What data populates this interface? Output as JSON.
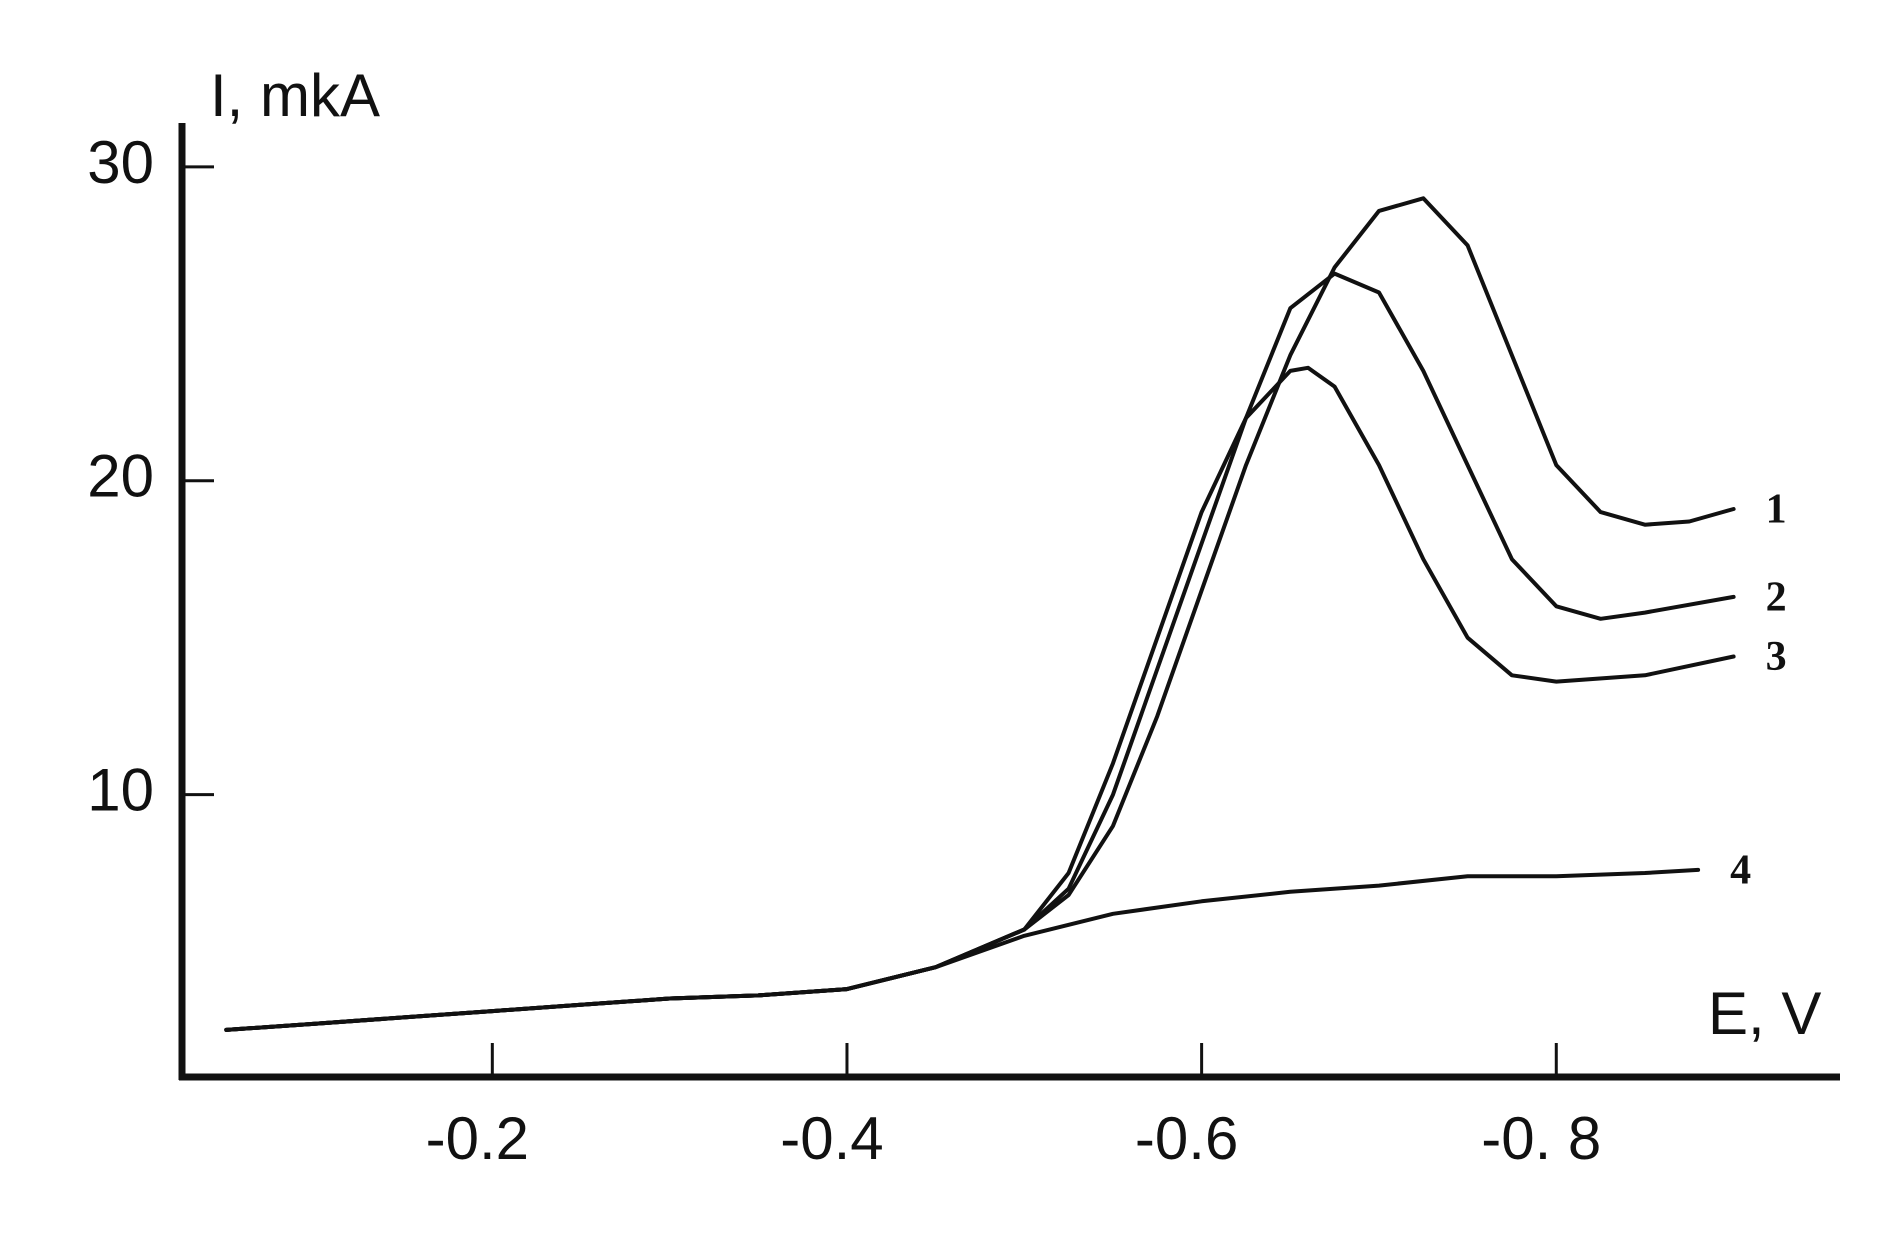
{
  "chart_data": {
    "type": "line",
    "y_label": "I, mkA",
    "x_label": "E, V",
    "xlim": [
      -0.025,
      -0.96
    ],
    "ylim": [
      1,
      31.4
    ],
    "xticks": [
      -0.2,
      -0.4,
      -0.6,
      {
        "value": -0.8,
        "label": "-0. 8"
      }
    ],
    "yticks": [
      10,
      20,
      30
    ],
    "series": [
      {
        "name": "1",
        "color": "#111111",
        "x": [
          -0.05,
          -0.1,
          -0.15,
          -0.2,
          -0.25,
          -0.3,
          -0.35,
          -0.4,
          -0.45,
          -0.5,
          -0.525,
          -0.55,
          -0.575,
          -0.6,
          -0.625,
          -0.65,
          -0.675,
          -0.7,
          -0.725,
          -0.75,
          -0.775,
          -0.8,
          -0.825,
          -0.85,
          -0.875,
          -0.9
        ],
        "values": [
          2.5,
          2.7,
          2.9,
          3.1,
          3.3,
          3.5,
          3.6,
          3.8,
          4.5,
          5.7,
          6.8,
          9,
          12.5,
          16.5,
          20.5,
          24,
          26.8,
          28.6,
          29,
          27.5,
          24,
          20.5,
          19,
          18.6,
          18.7,
          19.1
        ]
      },
      {
        "name": "2",
        "color": "#111111",
        "x": [
          -0.05,
          -0.1,
          -0.15,
          -0.2,
          -0.25,
          -0.3,
          -0.35,
          -0.4,
          -0.45,
          -0.5,
          -0.525,
          -0.55,
          -0.575,
          -0.6,
          -0.625,
          -0.65,
          -0.675,
          -0.7,
          -0.725,
          -0.75,
          -0.775,
          -0.8,
          -0.825,
          -0.85,
          -0.9
        ],
        "values": [
          2.5,
          2.7,
          2.9,
          3.1,
          3.3,
          3.5,
          3.6,
          3.8,
          4.5,
          5.7,
          7,
          10,
          14,
          18,
          22,
          25.5,
          26.6,
          26,
          23.5,
          20.5,
          17.5,
          16,
          15.6,
          15.8,
          16.3
        ]
      },
      {
        "name": "3",
        "color": "#111111",
        "x": [
          -0.05,
          -0.1,
          -0.15,
          -0.2,
          -0.25,
          -0.3,
          -0.35,
          -0.4,
          -0.45,
          -0.5,
          -0.525,
          -0.55,
          -0.575,
          -0.6,
          -0.625,
          -0.65,
          -0.66,
          -0.675,
          -0.7,
          -0.725,
          -0.75,
          -0.775,
          -0.8,
          -0.85,
          -0.9
        ],
        "values": [
          2.5,
          2.7,
          2.9,
          3.1,
          3.3,
          3.5,
          3.6,
          3.8,
          4.5,
          5.7,
          7.5,
          11,
          15,
          19,
          22,
          23.5,
          23.6,
          23,
          20.5,
          17.5,
          15,
          13.8,
          13.6,
          13.8,
          14.4
        ]
      },
      {
        "name": "4",
        "color": "#111111",
        "x": [
          -0.05,
          -0.1,
          -0.15,
          -0.2,
          -0.25,
          -0.3,
          -0.35,
          -0.4,
          -0.45,
          -0.5,
          -0.55,
          -0.6,
          -0.65,
          -0.7,
          -0.75,
          -0.8,
          -0.85,
          -0.88
        ],
        "values": [
          2.5,
          2.7,
          2.9,
          3.1,
          3.3,
          3.5,
          3.6,
          3.8,
          4.5,
          5.5,
          6.2,
          6.6,
          6.9,
          7.1,
          7.4,
          7.4,
          7.5,
          7.6
        ]
      }
    ]
  }
}
